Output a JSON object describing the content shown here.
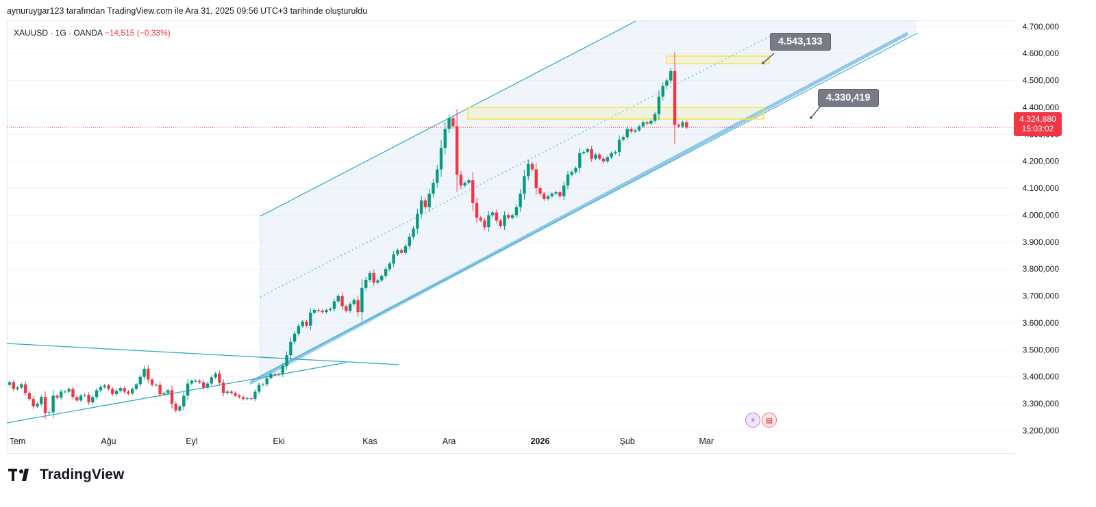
{
  "caption": "aynuruygar123 tarafından TradingView.com ile Ara 31, 2025 09:56 UTC+3 tarihinde oluşturuldu",
  "legend": {
    "symbol": "XAUUSD · 1G · OANDA",
    "change": "−14,515 (−0,33%)"
  },
  "price_tag": {
    "price": "4.324,880",
    "countdown": "15:03:02"
  },
  "annotations": {
    "high_label": "4.543,133",
    "low_label": "4.330,419"
  },
  "brand": "TradingView",
  "colors": {
    "up": "#089981",
    "down": "#f23645",
    "channel": "#2fa9c4",
    "zone": "#f5e642"
  },
  "chart_data": {
    "type": "candlestick",
    "title": "XAUUSD · 1G · OANDA",
    "ylim": [
      3130000,
      4720000
    ],
    "yticks": [
      "4.700,000",
      "4.600,000",
      "4.500,000",
      "4.400,000",
      "4.300,000",
      "4.200,000",
      "4.100,000",
      "4.000,000",
      "3.900,000",
      "3.800,000",
      "3.700,000",
      "3.600,000",
      "3.500,000",
      "3.400,000",
      "3.300,000",
      "3.200,000"
    ],
    "ytick_values": [
      4700000,
      4600000,
      4500000,
      4400000,
      4300000,
      4200000,
      4100000,
      4000000,
      3900000,
      3800000,
      3700000,
      3600000,
      3500000,
      3400000,
      3300000,
      3200000
    ],
    "xticks": [
      "Tem",
      "Ağu",
      "Eyl",
      "Eki",
      "Kas",
      "Ara",
      "2026",
      "Şub",
      "Mar"
    ],
    "start_label": "2025-06-27",
    "closes": [
      3380000,
      3355000,
      3360000,
      3372000,
      3340000,
      3318000,
      3290000,
      3300000,
      3325000,
      3265000,
      3268000,
      3330000,
      3322000,
      3345000,
      3345000,
      3355000,
      3325000,
      3312000,
      3330000,
      3333000,
      3305000,
      3325000,
      3350000,
      3362000,
      3368000,
      3355000,
      3336000,
      3348000,
      3358000,
      3345000,
      3338000,
      3355000,
      3372000,
      3400000,
      3430000,
      3390000,
      3370000,
      3370000,
      3335000,
      3340000,
      3350000,
      3300000,
      3275000,
      3290000,
      3330000,
      3375000,
      3385000,
      3385000,
      3380000,
      3360000,
      3375000,
      3398000,
      3412000,
      3378000,
      3340000,
      3345000,
      3340000,
      3330000,
      3325000,
      3318000,
      3320000,
      3318000,
      3345000,
      3370000,
      3372000,
      3395000,
      3410000,
      3408000,
      3410000,
      3440000,
      3480000,
      3530000,
      3560000,
      3588000,
      3605000,
      3590000,
      3638000,
      3648000,
      3645000,
      3640000,
      3648000,
      3652000,
      3680000,
      3700000,
      3662000,
      3645000,
      3670000,
      3685000,
      3640000,
      3730000,
      3760000,
      3785000,
      3750000,
      3758000,
      3775000,
      3800000,
      3820000,
      3855000,
      3870000,
      3860000,
      3885000,
      3920000,
      3950000,
      4005000,
      4055000,
      4030000,
      4080000,
      4120000,
      4170000,
      4250000,
      4320000,
      4360000,
      4330000,
      4150000,
      4110000,
      4120000,
      4130000,
      4045000,
      3990000,
      3980000,
      3955000,
      4000000,
      4010000,
      3980000,
      3960000,
      4000000,
      3990000,
      4000000,
      4030000,
      4080000,
      4145000,
      4190000,
      4170000,
      4100000,
      4080000,
      4060000,
      4070000,
      4080000,
      4085000,
      4070000,
      4110000,
      4150000,
      4160000,
      4175000,
      4230000,
      4235000,
      4245000,
      4210000,
      4225000,
      4210000,
      4200000,
      4215000,
      4230000,
      4235000,
      4280000,
      4290000,
      4320000,
      4310000,
      4315000,
      4330000,
      4345000,
      4340000,
      4350000,
      4375000,
      4440000,
      4480000,
      4500000,
      4535000,
      4335000,
      4330000,
      4345000,
      4326000
    ]
  }
}
